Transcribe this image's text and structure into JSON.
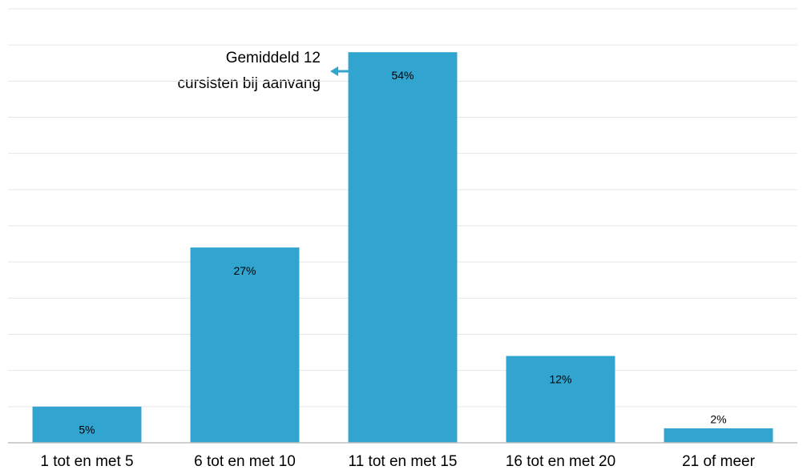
{
  "chart_data": {
    "type": "bar",
    "categories": [
      "1 tot en met 5",
      "6 tot en met 10",
      "11 tot en met 15",
      "16 tot en met 20",
      "21 of meer"
    ],
    "values": [
      5,
      27,
      54,
      12,
      2
    ],
    "value_labels": [
      "5%",
      "27%",
      "54%",
      "12%",
      "2%"
    ],
    "color": "#31a5d0",
    "ylim": [
      0,
      60
    ],
    "yticks": [
      0,
      5,
      10,
      15,
      20,
      25,
      30,
      35,
      40,
      45,
      50,
      55,
      60
    ],
    "grid": true,
    "annotation": [
      "Gemiddeld 12",
      "cursisten bij aanvang"
    ]
  }
}
